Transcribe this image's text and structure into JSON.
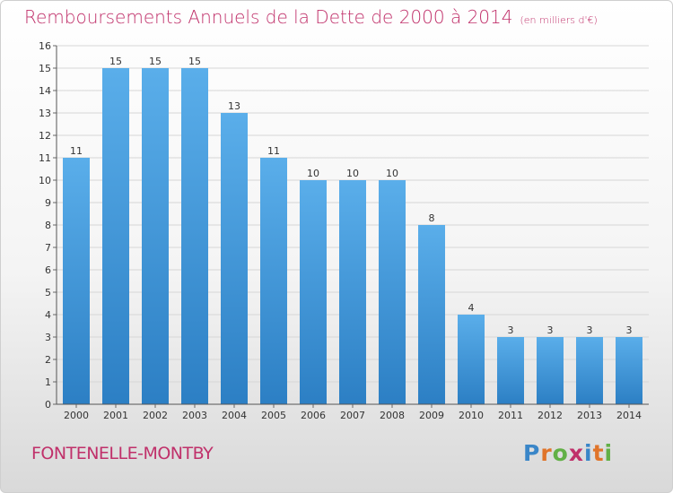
{
  "header": {
    "title": "Remboursements Annuels de la Dette de 2000 à 2014",
    "subtitle": "(en milliers d'€)"
  },
  "footer": {
    "commune": "FONTENELLE-MONTBY",
    "logo": "Proxiti"
  },
  "colors": {
    "title": "#c0306a",
    "bar_top": "#5aaeea",
    "bar_bottom": "#2c7fc4",
    "logo_letters": [
      "#3a86c8",
      "#e0742a",
      "#62b046",
      "#c0306a",
      "#3a86c8",
      "#e0742a",
      "#62b046"
    ]
  },
  "chart_data": {
    "type": "bar",
    "categories": [
      "2000",
      "2001",
      "2002",
      "2003",
      "2004",
      "2005",
      "2006",
      "2007",
      "2008",
      "2009",
      "2010",
      "2011",
      "2012",
      "2013",
      "2014"
    ],
    "values": [
      11,
      15,
      15,
      15,
      13,
      11,
      10,
      10,
      10,
      8,
      4,
      3,
      3,
      3,
      3
    ],
    "ylim": [
      0,
      16
    ],
    "yticks": [
      0,
      1,
      2,
      3,
      4,
      5,
      6,
      7,
      8,
      9,
      10,
      11,
      12,
      13,
      14,
      15,
      16
    ],
    "grid": true
  }
}
